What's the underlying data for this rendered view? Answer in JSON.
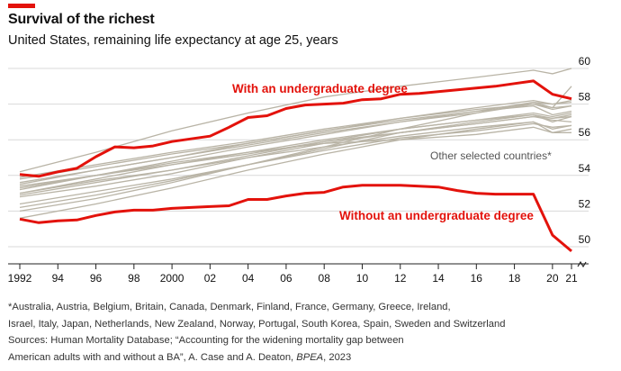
{
  "header": {
    "title": "Survival of the richest",
    "subtitle": "United States, remaining life expectancy at age 25, years"
  },
  "colors": {
    "accent": "#e3120b",
    "grey_series": "#b9b4a6",
    "grid": "#d9d9d9"
  },
  "chart_data": {
    "type": "line",
    "x_tick_labels": [
      "1992",
      "94",
      "96",
      "98",
      "2000",
      "02",
      "04",
      "06",
      "08",
      "10",
      "12",
      "14",
      "16",
      "18",
      "20",
      "21"
    ],
    "x_ticks": [
      1992,
      1994,
      1996,
      1998,
      2000,
      2002,
      2004,
      2006,
      2008,
      2010,
      2012,
      2014,
      2016,
      2018,
      2020,
      2021
    ],
    "xlim": [
      1992,
      2021
    ],
    "y_ticks": [
      50,
      52,
      54,
      56,
      58,
      60
    ],
    "y_tick_labels": [
      "50",
      "52",
      "54",
      "56",
      "58",
      "60"
    ],
    "ylim": [
      49.5,
      60
    ],
    "grid": true,
    "axis_break": true,
    "series": [
      {
        "name": "With an undergraduate degree",
        "color": "#e3120b",
        "x": [
          1992,
          1993,
          1994,
          1995,
          1996,
          1997,
          1998,
          1999,
          2000,
          2001,
          2002,
          2003,
          2004,
          2005,
          2006,
          2007,
          2008,
          2009,
          2010,
          2011,
          2012,
          2013,
          2014,
          2015,
          2016,
          2017,
          2018,
          2019,
          2020,
          2021
        ],
        "y": [
          54.05,
          53.95,
          54.2,
          54.4,
          55.05,
          55.6,
          55.55,
          55.65,
          55.9,
          56.05,
          56.2,
          56.7,
          57.25,
          57.35,
          57.75,
          57.95,
          58.0,
          58.05,
          58.25,
          58.3,
          58.55,
          58.6,
          58.7,
          58.8,
          58.9,
          59.0,
          59.15,
          59.3,
          58.55,
          58.3
        ]
      },
      {
        "name": "Without an undergraduate degree",
        "color": "#e3120b",
        "x": [
          1992,
          1993,
          1994,
          1995,
          1996,
          1997,
          1998,
          1999,
          2000,
          2001,
          2002,
          2003,
          2004,
          2005,
          2006,
          2007,
          2008,
          2009,
          2010,
          2011,
          2012,
          2013,
          2014,
          2015,
          2016,
          2017,
          2018,
          2019,
          2020,
          2021
        ],
        "y": [
          51.55,
          51.35,
          51.45,
          51.5,
          51.75,
          51.95,
          52.05,
          52.05,
          52.15,
          52.2,
          52.25,
          52.3,
          52.65,
          52.65,
          52.85,
          53.0,
          53.05,
          53.35,
          53.45,
          53.45,
          53.45,
          53.4,
          53.35,
          53.15,
          53.0,
          52.95,
          52.95,
          52.95,
          50.65,
          49.75
        ]
      }
    ],
    "other_series_label": "Other selected countries*",
    "other_series": [
      {
        "x": [
          1992,
          1996,
          2000,
          2004,
          2008,
          2012,
          2016,
          2019,
          2020,
          2021
        ],
        "y": [
          53.5,
          54.3,
          55.0,
          55.8,
          56.5,
          57.2,
          57.8,
          58.2,
          58.0,
          58.1
        ]
      },
      {
        "x": [
          1992,
          1996,
          2000,
          2004,
          2008,
          2012,
          2016,
          2019,
          2020,
          2021
        ],
        "y": [
          53.0,
          53.7,
          54.3,
          55.0,
          55.6,
          56.2,
          56.7,
          57.0,
          56.6,
          56.8
        ]
      },
      {
        "x": [
          1992,
          1996,
          2000,
          2004,
          2008,
          2012,
          2016,
          2019,
          2020,
          2021
        ],
        "y": [
          52.2,
          52.9,
          53.7,
          54.6,
          55.5,
          56.4,
          57.0,
          57.4,
          57.0,
          57.3
        ]
      },
      {
        "x": [
          1992,
          1996,
          2000,
          2004,
          2008,
          2012,
          2016,
          2019,
          2020,
          2021
        ],
        "y": [
          52.8,
          53.4,
          54.1,
          55.0,
          55.8,
          56.4,
          56.9,
          57.3,
          57.1,
          57.0
        ]
      },
      {
        "x": [
          1992,
          1996,
          2000,
          2004,
          2008,
          2012,
          2016,
          2019,
          2020,
          2021
        ],
        "y": [
          53.0,
          53.8,
          54.6,
          55.3,
          55.8,
          56.0,
          56.3,
          56.7,
          56.4,
          56.6
        ]
      },
      {
        "x": [
          1992,
          1996,
          2000,
          2004,
          2008,
          2012,
          2016,
          2019,
          2020,
          2021
        ],
        "y": [
          53.3,
          54.0,
          54.7,
          55.3,
          56.0,
          56.6,
          57.1,
          57.4,
          57.2,
          57.3
        ]
      },
      {
        "x": [
          1992,
          1996,
          2000,
          2004,
          2008,
          2012,
          2016,
          2019,
          2020,
          2021
        ],
        "y": [
          53.9,
          54.6,
          55.3,
          55.9,
          56.6,
          57.2,
          57.7,
          58.0,
          57.8,
          57.9
        ]
      },
      {
        "x": [
          1992,
          1996,
          2000,
          2004,
          2008,
          2012,
          2016,
          2019,
          2020,
          2021
        ],
        "y": [
          54.2,
          55.3,
          56.5,
          57.5,
          58.4,
          59.0,
          59.5,
          59.9,
          59.7,
          60.0
        ]
      },
      {
        "x": [
          1992,
          1996,
          2000,
          2004,
          2008,
          2012,
          2016,
          2019,
          2020,
          2021
        ],
        "y": [
          51.6,
          52.4,
          53.3,
          54.3,
          55.2,
          56.0,
          56.6,
          57.0,
          56.4,
          56.4
        ]
      },
      {
        "x": [
          1992,
          1996,
          2000,
          2004,
          2008,
          2012,
          2016,
          2019,
          2020,
          2021
        ],
        "y": [
          53.6,
          54.3,
          55.0,
          55.7,
          56.4,
          57.0,
          57.5,
          58.0,
          57.7,
          57.9
        ]
      },
      {
        "x": [
          1992,
          1996,
          2000,
          2004,
          2008,
          2012,
          2016,
          2019,
          2020,
          2021
        ],
        "y": [
          52.4,
          53.1,
          53.8,
          54.6,
          55.4,
          56.1,
          56.5,
          56.9,
          56.7,
          56.8
        ]
      },
      {
        "x": [
          1992,
          1996,
          2000,
          2004,
          2008,
          2012,
          2016,
          2019,
          2020,
          2021
        ],
        "y": [
          52.9,
          53.6,
          54.3,
          55.1,
          55.9,
          56.6,
          57.1,
          57.5,
          57.3,
          57.5
        ]
      },
      {
        "x": [
          1992,
          1996,
          2000,
          2004,
          2008,
          2012,
          2016,
          2019,
          2020,
          2021
        ],
        "y": [
          53.4,
          54.0,
          54.6,
          55.2,
          55.9,
          56.4,
          56.9,
          57.3,
          57.2,
          57.4
        ]
      },
      {
        "x": [
          1992,
          1996,
          2000,
          2004,
          2008,
          2012,
          2016,
          2019,
          2020,
          2021
        ],
        "y": [
          52.0,
          52.7,
          53.6,
          54.6,
          55.6,
          56.6,
          57.5,
          58.1,
          58.0,
          58.2
        ]
      },
      {
        "x": [
          1992,
          1996,
          2000,
          2004,
          2008,
          2012,
          2016,
          2019,
          2020,
          2021
        ],
        "y": [
          53.8,
          54.5,
          55.2,
          55.8,
          56.5,
          57.1,
          57.6,
          57.9,
          57.4,
          57.6
        ]
      },
      {
        "x": [
          1992,
          1996,
          2000,
          2004,
          2008,
          2012,
          2016,
          2019,
          2020,
          2021
        ],
        "y": [
          53.2,
          54.0,
          54.8,
          55.6,
          56.3,
          57.0,
          57.6,
          58.1,
          57.8,
          59.0
        ]
      }
    ]
  },
  "footnote": {
    "line1": "*Australia, Austria, Belgium, Britain, Canada, Denmark, Finland, France, Germany, Greece, Ireland,",
    "line2": "Israel, Italy, Japan, Netherlands, New Zealand, Norway, Portugal, South Korea, Spain, Sweden and Switzerland",
    "line3": "Sources: Human Mortality Database; “Accounting for the widening mortality gap between",
    "line4_prefix": "American adults with and without a BA”, A. Case and A. Deaton, ",
    "line4_journal": "BPEA",
    "line4_suffix": ", 2023"
  }
}
